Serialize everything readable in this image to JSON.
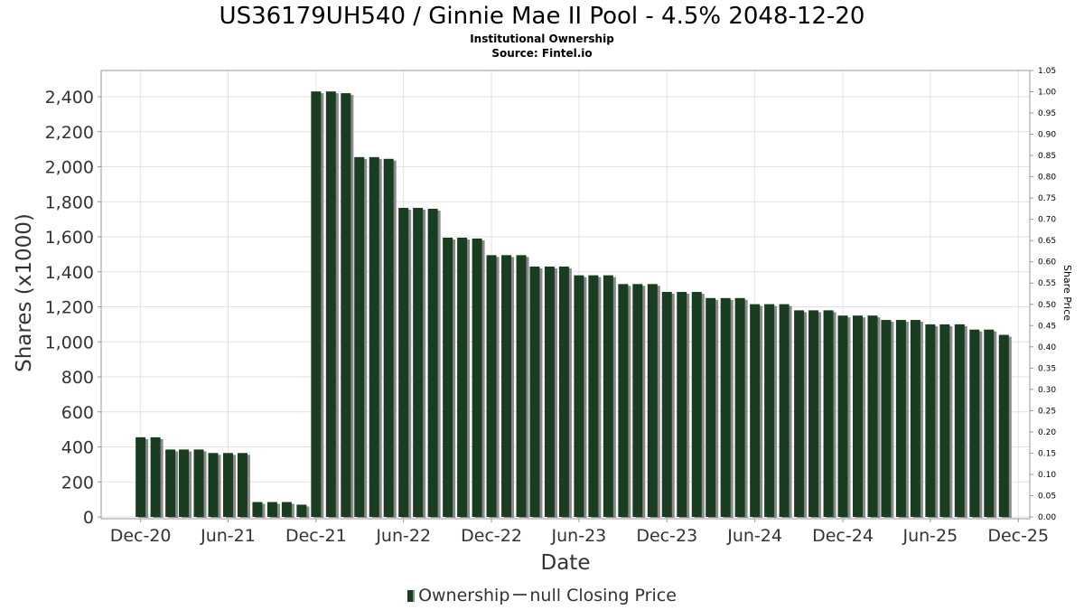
{
  "title": "US36179UH540 / Ginnie Mae II Pool - 4.5% 2048-12-20",
  "subtitle": "Institutional Ownership",
  "source": "Source: Fintel.io",
  "legend": {
    "series1": "Ownership",
    "series2": "null Closing Price"
  },
  "colors": {
    "bar": "#1a3d22",
    "bar_shadow": "#8a8a8a",
    "grid": "#e2e2e2"
  },
  "chart_data": {
    "type": "bar",
    "xlabel": "Date",
    "ylabel": "Shares (x1000)",
    "y2label": "Share Price",
    "ylim": [
      0,
      2550
    ],
    "y2lim": [
      0,
      1.05
    ],
    "x_range": [
      "2020-09-10",
      "2025-12-25"
    ],
    "yticks": [
      "0",
      "200",
      "400",
      "600",
      "800",
      "1,000",
      "1,200",
      "1,400",
      "1,600",
      "1,800",
      "2,000",
      "2,200",
      "2,400"
    ],
    "y2ticks": [
      "0.00",
      "0.05",
      "0.10",
      "0.15",
      "0.20",
      "0.25",
      "0.30",
      "0.35",
      "0.40",
      "0.45",
      "0.50",
      "0.55",
      "0.60",
      "0.65",
      "0.70",
      "0.75",
      "0.80",
      "0.85",
      "0.90",
      "0.95",
      "1.00",
      "1.05"
    ],
    "xticks": [
      {
        "label": "Dec-20",
        "date": "2020-12-01"
      },
      {
        "label": "Jun-21",
        "date": "2021-06-01"
      },
      {
        "label": "Dec-21",
        "date": "2021-12-01"
      },
      {
        "label": "Jun-22",
        "date": "2022-06-01"
      },
      {
        "label": "Dec-22",
        "date": "2022-12-01"
      },
      {
        "label": "Jun-23",
        "date": "2023-06-01"
      },
      {
        "label": "Dec-23",
        "date": "2023-12-01"
      },
      {
        "label": "Jun-24",
        "date": "2024-06-01"
      },
      {
        "label": "Dec-24",
        "date": "2024-12-01"
      },
      {
        "label": "Jun-25",
        "date": "2025-06-01"
      },
      {
        "label": "Dec-25",
        "date": "2025-12-01"
      }
    ],
    "series": [
      {
        "name": "Ownership",
        "points": [
          {
            "x": "2020-12-01",
            "y": 455
          },
          {
            "x": "2021-01-01",
            "y": 455
          },
          {
            "x": "2021-02-01",
            "y": 385
          },
          {
            "x": "2021-03-01",
            "y": 385
          },
          {
            "x": "2021-04-01",
            "y": 385
          },
          {
            "x": "2021-05-01",
            "y": 365
          },
          {
            "x": "2021-06-01",
            "y": 365
          },
          {
            "x": "2021-07-01",
            "y": 365
          },
          {
            "x": "2021-08-01",
            "y": 85
          },
          {
            "x": "2021-09-01",
            "y": 85
          },
          {
            "x": "2021-10-01",
            "y": 85
          },
          {
            "x": "2021-11-01",
            "y": 70
          },
          {
            "x": "2021-12-01",
            "y": 2430
          },
          {
            "x": "2022-01-01",
            "y": 2430
          },
          {
            "x": "2022-02-01",
            "y": 2420
          },
          {
            "x": "2022-03-01",
            "y": 2055
          },
          {
            "x": "2022-04-01",
            "y": 2055
          },
          {
            "x": "2022-05-01",
            "y": 2045
          },
          {
            "x": "2022-06-01",
            "y": 1765
          },
          {
            "x": "2022-07-01",
            "y": 1765
          },
          {
            "x": "2022-08-01",
            "y": 1760
          },
          {
            "x": "2022-09-01",
            "y": 1595
          },
          {
            "x": "2022-10-01",
            "y": 1595
          },
          {
            "x": "2022-11-01",
            "y": 1590
          },
          {
            "x": "2022-12-01",
            "y": 1495
          },
          {
            "x": "2023-01-01",
            "y": 1495
          },
          {
            "x": "2023-02-01",
            "y": 1495
          },
          {
            "x": "2023-03-01",
            "y": 1430
          },
          {
            "x": "2023-04-01",
            "y": 1430
          },
          {
            "x": "2023-05-01",
            "y": 1430
          },
          {
            "x": "2023-06-01",
            "y": 1380
          },
          {
            "x": "2023-07-01",
            "y": 1380
          },
          {
            "x": "2023-08-01",
            "y": 1380
          },
          {
            "x": "2023-09-01",
            "y": 1330
          },
          {
            "x": "2023-10-01",
            "y": 1330
          },
          {
            "x": "2023-11-01",
            "y": 1330
          },
          {
            "x": "2023-12-01",
            "y": 1285
          },
          {
            "x": "2024-01-01",
            "y": 1285
          },
          {
            "x": "2024-02-01",
            "y": 1285
          },
          {
            "x": "2024-03-01",
            "y": 1250
          },
          {
            "x": "2024-04-01",
            "y": 1250
          },
          {
            "x": "2024-05-01",
            "y": 1250
          },
          {
            "x": "2024-06-01",
            "y": 1215
          },
          {
            "x": "2024-07-01",
            "y": 1215
          },
          {
            "x": "2024-08-01",
            "y": 1215
          },
          {
            "x": "2024-09-01",
            "y": 1180
          },
          {
            "x": "2024-10-01",
            "y": 1180
          },
          {
            "x": "2024-11-01",
            "y": 1180
          },
          {
            "x": "2024-12-01",
            "y": 1150
          },
          {
            "x": "2025-01-01",
            "y": 1150
          },
          {
            "x": "2025-02-01",
            "y": 1150
          },
          {
            "x": "2025-03-01",
            "y": 1125
          },
          {
            "x": "2025-04-01",
            "y": 1125
          },
          {
            "x": "2025-05-01",
            "y": 1125
          },
          {
            "x": "2025-06-01",
            "y": 1100
          },
          {
            "x": "2025-07-01",
            "y": 1100
          },
          {
            "x": "2025-08-01",
            "y": 1100
          },
          {
            "x": "2025-09-01",
            "y": 1070
          },
          {
            "x": "2025-10-01",
            "y": 1070
          },
          {
            "x": "2025-11-01",
            "y": 1040
          }
        ]
      },
      {
        "name": "null Closing Price",
        "points": []
      }
    ],
    "grid": true,
    "legend_position": "bottom-center"
  }
}
